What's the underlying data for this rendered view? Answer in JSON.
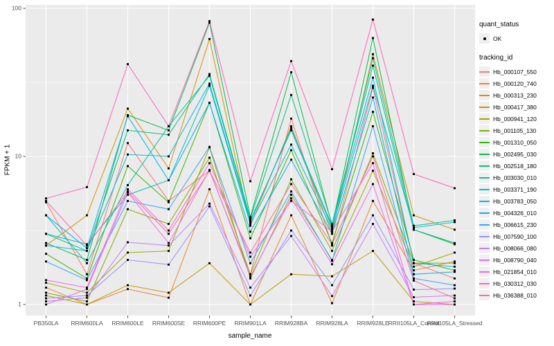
{
  "panel": {
    "bg": "#EBEBEB",
    "grid_color": "#FFFFFF",
    "tick_color": "#333333",
    "tick_text_color": "#4D4D4D",
    "point_color": "#000000"
  },
  "legend": {
    "quant_status_title": "quant_status",
    "quant_status_ok": "OK",
    "tracking_title": "tracking_id"
  },
  "chart_data": {
    "type": "line",
    "xlabel": "sample_name",
    "ylabel": "FPKM + 1",
    "y_scale": "log10",
    "y_ticks": [
      1,
      10,
      100
    ],
    "y_tick_labels": [
      "1",
      "10",
      "100"
    ],
    "y_minor": [
      3.162,
      31.62
    ],
    "ylim": [
      0.84,
      104
    ],
    "grid": "on",
    "legend_position": "right",
    "quant_status": [
      {
        "label": "OK",
        "symbol": "point"
      }
    ],
    "categories": [
      "PB350LA",
      "RRIM600LA",
      "RRIM600LE",
      "RRIM600SE",
      "RRIM600PE",
      "RRIM901LA",
      "RRIM928BA",
      "RRIM928LA",
      "RRIM928LE",
      "RRII105LA_Control",
      "RRII105LA_Stressed"
    ],
    "series": [
      {
        "name": "Hb_000107_550",
        "color": "#F8766D",
        "values": [
          4.9,
          1.6,
          12.3,
          5.0,
          8.0,
          1.6,
          18,
          2.5,
          29,
          1.9,
          1.5
        ]
      },
      {
        "name": "Hb_000120_740",
        "color": "#EA8331",
        "values": [
          1.3,
          1.0,
          1.27,
          1.11,
          6.0,
          1.0,
          4.0,
          1.02,
          5.0,
          1.7,
          1.95
        ]
      },
      {
        "name": "Hb_000313_230",
        "color": "#D89000",
        "values": [
          2.5,
          4.0,
          21,
          8.3,
          62,
          3.4,
          16,
          3.0,
          49,
          4.0,
          3.2
        ]
      },
      {
        "name": "Hb_000417_380",
        "color": "#C09B00",
        "values": [
          1.15,
          1.0,
          1.35,
          1.2,
          1.9,
          1.0,
          1.6,
          1.55,
          2.3,
          1.05,
          1.0
        ]
      },
      {
        "name": "Hb_000941_120",
        "color": "#A3A500",
        "values": [
          1.4,
          1.2,
          2.24,
          2.3,
          11.5,
          1.5,
          5.5,
          2.0,
          8.0,
          1.8,
          2.24
        ]
      },
      {
        "name": "Hb_001105_130",
        "color": "#7CAE00",
        "values": [
          1.2,
          1.05,
          4.4,
          3.5,
          9.8,
          1.6,
          7.0,
          2.3,
          10.5,
          1.9,
          1.9
        ]
      },
      {
        "name": "Hb_001310_050",
        "color": "#39B600",
        "values": [
          2.2,
          1.5,
          8.6,
          4.9,
          23,
          2.8,
          11,
          2.6,
          20,
          2.0,
          1.7
        ]
      },
      {
        "name": "Hb_002495_030",
        "color": "#00BB4E",
        "values": [
          2.6,
          2.0,
          19,
          15,
          80,
          3.9,
          37,
          3.4,
          63,
          3.2,
          2.6
        ]
      },
      {
        "name": "Hb_002518_180",
        "color": "#00BF7D",
        "values": [
          3.0,
          2.3,
          15,
          14,
          36,
          3.8,
          26,
          3.5,
          41,
          3.2,
          2.55
        ]
      },
      {
        "name": "Hb_003030_010",
        "color": "#00C1A3",
        "values": [
          4.0,
          1.9,
          6.4,
          16,
          35,
          3.7,
          15,
          3.3,
          46,
          3.4,
          3.7
        ]
      },
      {
        "name": "Hb_003371_190",
        "color": "#00BFC4",
        "values": [
          3.0,
          2.55,
          5.5,
          6.9,
          30,
          3.5,
          12,
          3.2,
          30,
          3.3,
          3.6
        ]
      },
      {
        "name": "Hb_003783_050",
        "color": "#00BAE0",
        "values": [
          2.5,
          2.3,
          10.3,
          10.0,
          31,
          3.6,
          15.5,
          3.4,
          34,
          1.9,
          1.8
        ]
      },
      {
        "name": "Hb_004326_010",
        "color": "#00B0F6",
        "values": [
          4.0,
          2.4,
          18.7,
          6.9,
          23,
          3.1,
          9.5,
          3.0,
          25,
          1.6,
          1.66
        ]
      },
      {
        "name": "Hb_006615_230",
        "color": "#35A2FF",
        "values": [
          1.95,
          1.46,
          5.0,
          4.4,
          11.6,
          1.9,
          5.8,
          1.97,
          16,
          1.5,
          1.35
        ]
      },
      {
        "name": "Hb_007590_100",
        "color": "#9590FF",
        "values": [
          1.1,
          1.15,
          2.0,
          1.86,
          4.6,
          1.15,
          3.16,
          1.35,
          4.0,
          1.26,
          1.28
        ]
      },
      {
        "name": "Hb_008066_080",
        "color": "#C77CFF",
        "values": [
          1.05,
          1.11,
          2.63,
          2.5,
          4.8,
          1.3,
          2.9,
          1.14,
          3.5,
          1.12,
          1.15
        ]
      },
      {
        "name": "Hb_008790_040",
        "color": "#E76BF3",
        "values": [
          1.0,
          1.27,
          5.7,
          2.6,
          8.1,
          1.54,
          5.2,
          1.87,
          6.5,
          1.0,
          1.0
        ]
      },
      {
        "name": "Hb_021854_010",
        "color": "#FA62DB",
        "values": [
          1.46,
          1.3,
          6.0,
          3.16,
          9.0,
          2.1,
          5.0,
          3.1,
          9.0,
          1.0,
          1.05
        ]
      },
      {
        "name": "Hb_030312_030",
        "color": "#FF62BC",
        "values": [
          5.2,
          6.2,
          42,
          16,
          82,
          6.8,
          44,
          8.2,
          84,
          7.6,
          6.1
        ]
      },
      {
        "name": "Hb_036388_010",
        "color": "#FF6A98",
        "values": [
          5.0,
          2.5,
          5.8,
          3.0,
          8.0,
          2.24,
          6.5,
          2.55,
          10,
          1.45,
          1.1
        ]
      }
    ]
  }
}
